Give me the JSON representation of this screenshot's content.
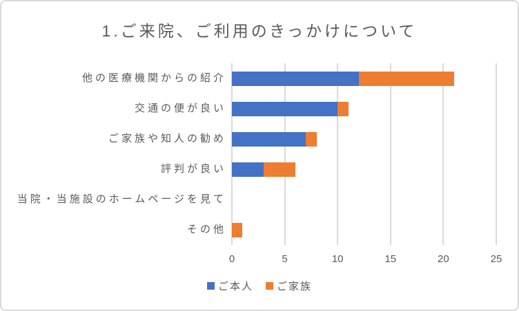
{
  "chart_data": {
    "type": "bar",
    "orientation": "horizontal",
    "stacked": true,
    "title": "1.ご来院、ご利用のきっかけについて",
    "categories": [
      "他の医療機関からの紹介",
      "交通の便が良い",
      "ご家族や知人の勧め",
      "評判が良い",
      "当院・当施設のホームページを見て",
      "その他"
    ],
    "series": [
      {
        "name": "ご本人",
        "color": "#4472C4",
        "values": [
          12,
          10,
          7,
          3,
          0,
          0
        ]
      },
      {
        "name": "ご家族",
        "color": "#ED7D31",
        "values": [
          9,
          1,
          1,
          3,
          0,
          1
        ]
      }
    ],
    "x_ticks": [
      0,
      5,
      10,
      15,
      20,
      25
    ],
    "xlim": [
      0,
      25
    ],
    "grid": true,
    "legend_position": "bottom"
  },
  "colors": {
    "text": "#595959",
    "gridline": "#D9D9D9",
    "frame_border": "#D9D9D9",
    "background": "#FFFFFF"
  }
}
